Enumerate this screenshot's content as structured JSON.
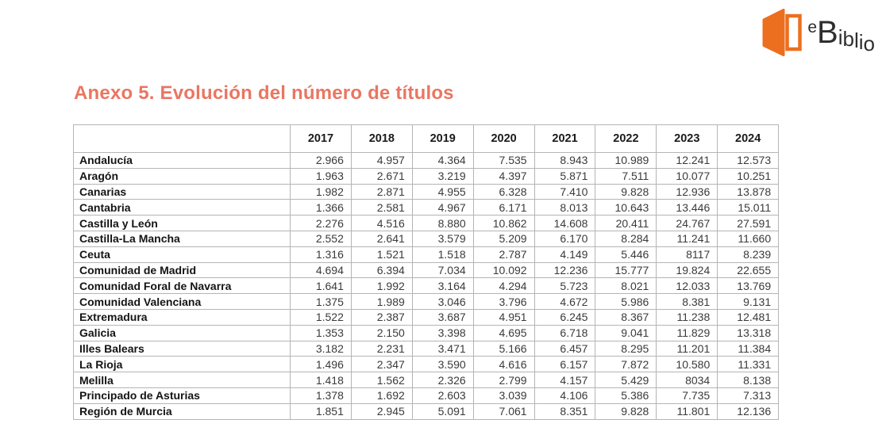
{
  "logo": {
    "letters": [
      "e",
      "B",
      "i",
      "b",
      "l",
      "i",
      "o"
    ],
    "orange": "#ec6f1f"
  },
  "title": "Anexo 5. Evolución del número de títulos",
  "colors": {
    "title_accent": "#e97662",
    "logo_orange": "#ec6f1f",
    "table_border": "#b5b5b5"
  },
  "table": {
    "corner_header": "",
    "years": [
      "2017",
      "2018",
      "2019",
      "2020",
      "2021",
      "2022",
      "2023",
      "2024"
    ],
    "rows": [
      {
        "label": "Andalucía",
        "values": [
          "2.966",
          "4.957",
          "4.364",
          "7.535",
          "8.943",
          "10.989",
          "12.241",
          "12.573"
        ]
      },
      {
        "label": "Aragón",
        "values": [
          "1.963",
          "2.671",
          "3.219",
          "4.397",
          "5.871",
          "7.511",
          "10.077",
          "10.251"
        ]
      },
      {
        "label": "Canarias",
        "values": [
          "1.982",
          "2.871",
          "4.955",
          "6.328",
          "7.410",
          "9.828",
          "12.936",
          "13.878"
        ]
      },
      {
        "label": "Cantabria",
        "values": [
          "1.366",
          "2.581",
          "4.967",
          "6.171",
          "8.013",
          "10.643",
          "13.446",
          "15.011"
        ]
      },
      {
        "label": "Castilla y León",
        "values": [
          "2.276",
          "4.516",
          "8.880",
          "10.862",
          "14.608",
          "20.411",
          "24.767",
          "27.591"
        ]
      },
      {
        "label": "Castilla-La Mancha",
        "values": [
          "2.552",
          "2.641",
          "3.579",
          "5.209",
          "6.170",
          "8.284",
          "11.241",
          "11.660"
        ]
      },
      {
        "label": "Ceuta",
        "values": [
          "1.316",
          "1.521",
          "1.518",
          "2.787",
          "4.149",
          "5.446",
          "8117",
          "8.239"
        ]
      },
      {
        "label": "Comunidad de Madrid",
        "values": [
          "4.694",
          "6.394",
          "7.034",
          "10.092",
          "12.236",
          "15.777",
          "19.824",
          "22.655"
        ]
      },
      {
        "label": "Comunidad Foral de Navarra",
        "values": [
          "1.641",
          "1.992",
          "3.164",
          "4.294",
          "5.723",
          "8.021",
          "12.033",
          "13.769"
        ]
      },
      {
        "label": "Comunidad Valenciana",
        "values": [
          "1.375",
          "1.989",
          "3.046",
          "3.796",
          "4.672",
          "5.986",
          "8.381",
          "9.131"
        ]
      },
      {
        "label": "Extremadura",
        "values": [
          "1.522",
          "2.387",
          "3.687",
          "4.951",
          "6.245",
          "8.367",
          "11.238",
          "12.481"
        ]
      },
      {
        "label": "Galicia",
        "values": [
          "1.353",
          "2.150",
          "3.398",
          "4.695",
          "6.718",
          "9.041",
          "11.829",
          "13.318"
        ]
      },
      {
        "label": "Illes Balears",
        "values": [
          "3.182",
          "2.231",
          "3.471",
          "5.166",
          "6.457",
          "8.295",
          "11.201",
          "11.384"
        ]
      },
      {
        "label": "La Rioja",
        "values": [
          "1.496",
          "2.347",
          "3.590",
          "4.616",
          "6.157",
          "7.872",
          "10.580",
          "11.331"
        ]
      },
      {
        "label": "Melilla",
        "values": [
          "1.418",
          "1.562",
          "2.326",
          "2.799",
          "4.157",
          "5.429",
          "8034",
          "8.138"
        ]
      },
      {
        "label": "Principado de Asturias",
        "values": [
          "1.378",
          "1.692",
          "2.603",
          "3.039",
          "4.106",
          "5.386",
          "7.735",
          "7.313"
        ]
      },
      {
        "label": "Región de Murcia",
        "values": [
          "1.851",
          "2.945",
          "5.091",
          "7.061",
          "8.351",
          "9.828",
          "11.801",
          "12.136"
        ]
      }
    ]
  }
}
